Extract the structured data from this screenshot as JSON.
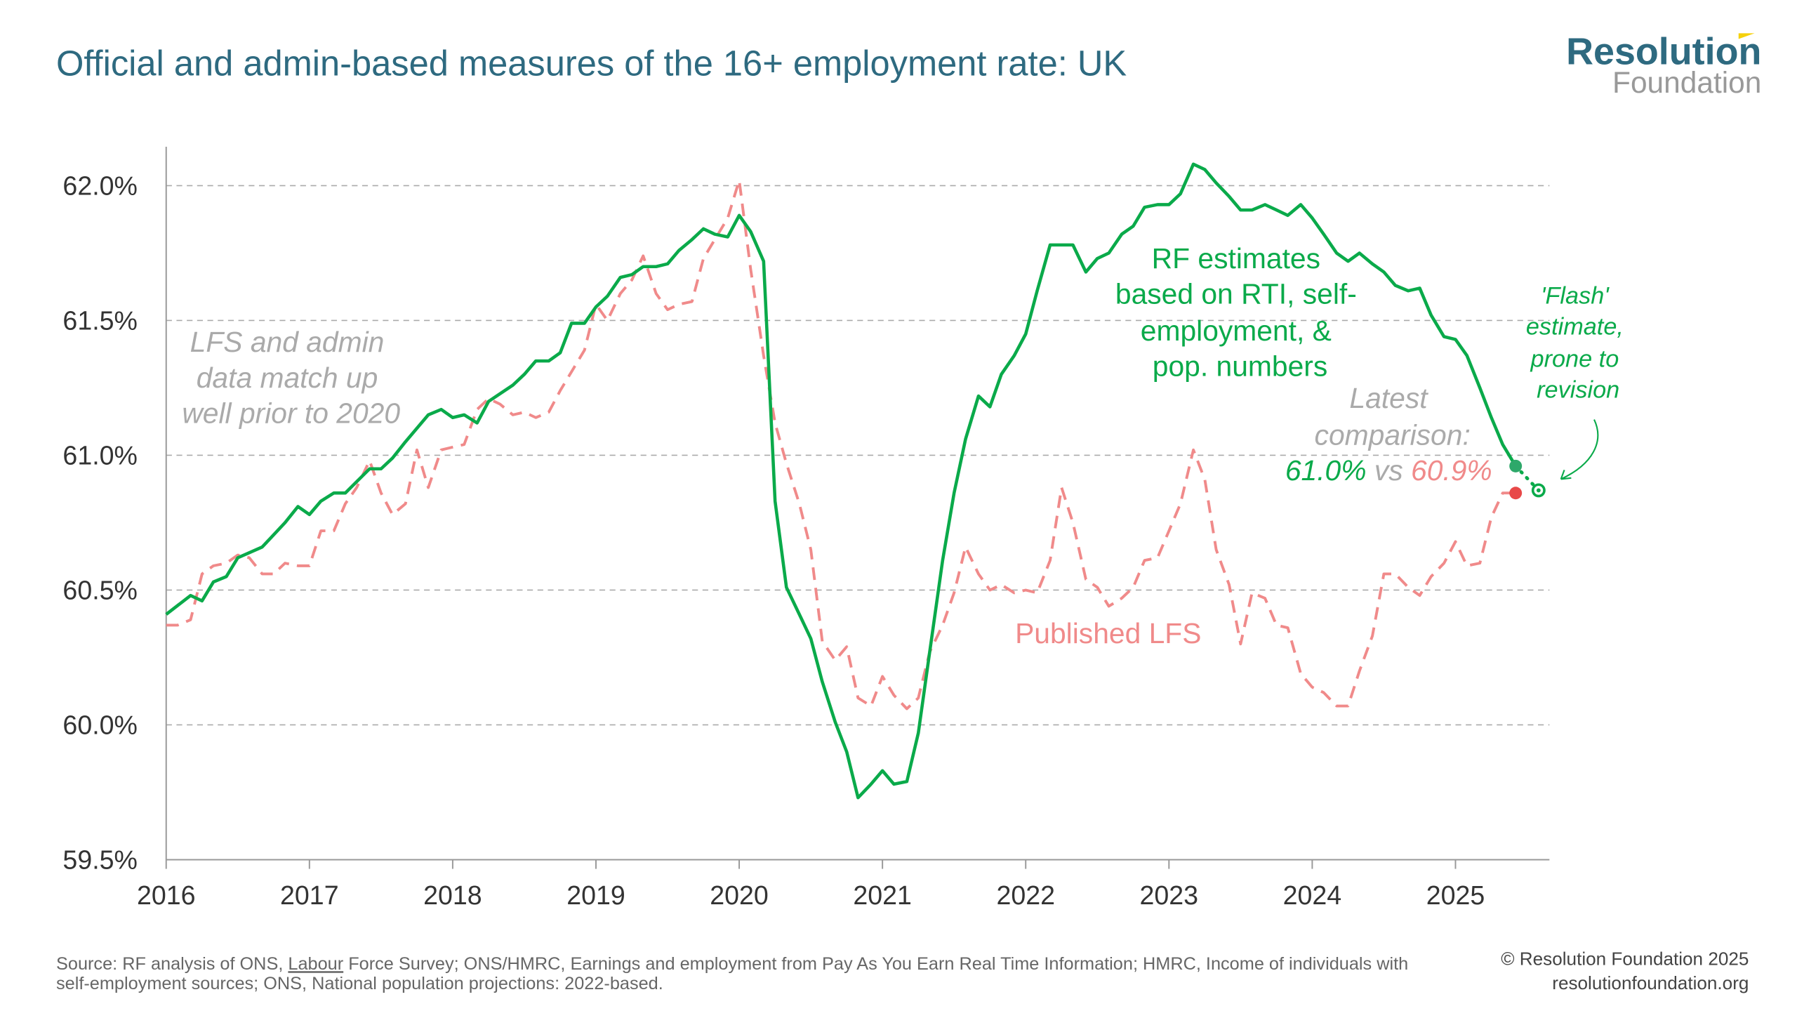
{
  "title": "Official and admin-based measures of the 16+ employment rate: UK",
  "logo": {
    "line1": "Resolution",
    "line2": "Foundation",
    "accent_color": "#f5d10c",
    "color1": "#2e6a80",
    "color2": "#999999"
  },
  "footer": {
    "source_line1_prefix": "Source: RF analysis of ONS, ",
    "source_link": "Labour",
    "source_line1_suffix": " Force Survey; ONS/HMRC, Earnings and employment from Pay As You Earn Real Time Information; HMRC, Income of individuals with",
    "source_line2": "self-employment sources; ONS, National population projections: 2022-based.",
    "copyright": "© Resolution Foundation 2025",
    "website": "resolutionfoundation.org"
  },
  "chart_data": {
    "type": "line",
    "title": "Official and admin-based measures of the 16+ employment rate: UK",
    "xlabel": "",
    "ylabel": "",
    "xlim": [
      2016,
      2025.66
    ],
    "ylim": [
      59.5,
      62.0
    ],
    "xticks": [
      2016,
      2017,
      2018,
      2019,
      2020,
      2021,
      2022,
      2023,
      2024,
      2025
    ],
    "xtick_labels": [
      "2016",
      "2017",
      "2018",
      "2019",
      "2020",
      "2021",
      "2022",
      "2023",
      "2024",
      "2025"
    ],
    "yticks": [
      59.5,
      60.0,
      60.5,
      61.0,
      61.5,
      62.0
    ],
    "ytick_labels": [
      "59.5%",
      "60.0%",
      "60.5%",
      "61.0%",
      "61.5%",
      "62.0%"
    ],
    "grid": "horizontal dashed",
    "series": [
      {
        "name": "RF estimates based on RTI, self-employment, & pop. numbers",
        "color": "#0aaa4a",
        "style": "solid",
        "points": [
          [
            2016.0,
            60.41
          ],
          [
            2016.17,
            60.48
          ],
          [
            2016.25,
            60.46
          ],
          [
            2016.33,
            60.53
          ],
          [
            2016.42,
            60.55
          ],
          [
            2016.5,
            60.62
          ],
          [
            2016.67,
            60.66
          ],
          [
            2016.83,
            60.75
          ],
          [
            2016.92,
            60.81
          ],
          [
            2017.0,
            60.78
          ],
          [
            2017.08,
            60.83
          ],
          [
            2017.17,
            60.86
          ],
          [
            2017.25,
            60.86
          ],
          [
            2017.42,
            60.95
          ],
          [
            2017.5,
            60.95
          ],
          [
            2017.58,
            60.99
          ],
          [
            2017.67,
            61.05
          ],
          [
            2017.83,
            61.15
          ],
          [
            2017.92,
            61.17
          ],
          [
            2018.0,
            61.14
          ],
          [
            2018.08,
            61.15
          ],
          [
            2018.17,
            61.12
          ],
          [
            2018.25,
            61.2
          ],
          [
            2018.42,
            61.26
          ],
          [
            2018.5,
            61.3
          ],
          [
            2018.58,
            61.35
          ],
          [
            2018.67,
            61.35
          ],
          [
            2018.75,
            61.38
          ],
          [
            2018.83,
            61.49
          ],
          [
            2018.92,
            61.49
          ],
          [
            2019.0,
            61.55
          ],
          [
            2019.08,
            61.59
          ],
          [
            2019.17,
            61.66
          ],
          [
            2019.25,
            61.67
          ],
          [
            2019.33,
            61.7
          ],
          [
            2019.42,
            61.7
          ],
          [
            2019.5,
            61.71
          ],
          [
            2019.58,
            61.76
          ],
          [
            2019.67,
            61.8
          ],
          [
            2019.75,
            61.84
          ],
          [
            2019.83,
            61.82
          ],
          [
            2019.92,
            61.81
          ],
          [
            2020.0,
            61.89
          ],
          [
            2020.08,
            61.83
          ],
          [
            2020.17,
            61.72
          ],
          [
            2020.25,
            60.83
          ],
          [
            2020.33,
            60.51
          ],
          [
            2020.42,
            60.41
          ],
          [
            2020.5,
            60.32
          ],
          [
            2020.58,
            60.16
          ],
          [
            2020.67,
            60.01
          ],
          [
            2020.75,
            59.9
          ],
          [
            2020.83,
            59.73
          ],
          [
            2020.92,
            59.78
          ],
          [
            2021.0,
            59.83
          ],
          [
            2021.08,
            59.78
          ],
          [
            2021.17,
            59.79
          ],
          [
            2021.25,
            59.97
          ],
          [
            2021.33,
            60.27
          ],
          [
            2021.42,
            60.61
          ],
          [
            2021.5,
            60.86
          ],
          [
            2021.58,
            61.06
          ],
          [
            2021.67,
            61.22
          ],
          [
            2021.75,
            61.18
          ],
          [
            2021.83,
            61.3
          ],
          [
            2021.92,
            61.37
          ],
          [
            2022.0,
            61.45
          ],
          [
            2022.08,
            61.61
          ],
          [
            2022.17,
            61.78
          ],
          [
            2022.25,
            61.78
          ],
          [
            2022.33,
            61.78
          ],
          [
            2022.42,
            61.68
          ],
          [
            2022.5,
            61.73
          ],
          [
            2022.58,
            61.75
          ],
          [
            2022.67,
            61.82
          ],
          [
            2022.75,
            61.85
          ],
          [
            2022.83,
            61.92
          ],
          [
            2022.92,
            61.93
          ],
          [
            2023.0,
            61.93
          ],
          [
            2023.08,
            61.97
          ],
          [
            2023.17,
            62.08
          ],
          [
            2023.25,
            62.06
          ],
          [
            2023.33,
            62.01
          ],
          [
            2023.42,
            61.96
          ],
          [
            2023.5,
            61.91
          ],
          [
            2023.58,
            61.91
          ],
          [
            2023.67,
            61.93
          ],
          [
            2023.75,
            61.91
          ],
          [
            2023.83,
            61.89
          ],
          [
            2023.92,
            61.93
          ],
          [
            2024.0,
            61.88
          ],
          [
            2024.08,
            61.82
          ],
          [
            2024.17,
            61.75
          ],
          [
            2024.25,
            61.72
          ],
          [
            2024.33,
            61.75
          ],
          [
            2024.42,
            61.71
          ],
          [
            2024.5,
            61.68
          ],
          [
            2024.58,
            61.63
          ],
          [
            2024.67,
            61.61
          ],
          [
            2024.75,
            61.62
          ],
          [
            2024.83,
            61.52
          ],
          [
            2024.92,
            61.44
          ],
          [
            2025.0,
            61.43
          ],
          [
            2025.08,
            61.37
          ],
          [
            2025.17,
            61.25
          ],
          [
            2025.25,
            61.14
          ],
          [
            2025.33,
            61.04
          ],
          [
            2025.42,
            60.96
          ]
        ],
        "latest": [
          2025.42,
          60.96
        ],
        "flash": [
          2025.58,
          60.87
        ]
      },
      {
        "name": "Published LFS",
        "color": "#f08a8a",
        "style": "dashed",
        "points": [
          [
            2016.0,
            60.37
          ],
          [
            2016.08,
            60.37
          ],
          [
            2016.17,
            60.39
          ],
          [
            2016.25,
            60.56
          ],
          [
            2016.33,
            60.59
          ],
          [
            2016.42,
            60.6
          ],
          [
            2016.5,
            60.63
          ],
          [
            2016.58,
            60.62
          ],
          [
            2016.67,
            60.56
          ],
          [
            2016.75,
            60.56
          ],
          [
            2016.83,
            60.6
          ],
          [
            2016.92,
            60.59
          ],
          [
            2017.0,
            60.59
          ],
          [
            2017.08,
            60.72
          ],
          [
            2017.17,
            60.72
          ],
          [
            2017.25,
            60.82
          ],
          [
            2017.33,
            60.88
          ],
          [
            2017.42,
            60.98
          ],
          [
            2017.5,
            60.86
          ],
          [
            2017.58,
            60.78
          ],
          [
            2017.67,
            60.82
          ],
          [
            2017.75,
            61.02
          ],
          [
            2017.83,
            60.88
          ],
          [
            2017.92,
            61.02
          ],
          [
            2018.0,
            61.03
          ],
          [
            2018.08,
            61.04
          ],
          [
            2018.17,
            61.17
          ],
          [
            2018.25,
            61.21
          ],
          [
            2018.33,
            61.19
          ],
          [
            2018.42,
            61.15
          ],
          [
            2018.5,
            61.16
          ],
          [
            2018.58,
            61.14
          ],
          [
            2018.67,
            61.16
          ],
          [
            2018.75,
            61.24
          ],
          [
            2018.83,
            61.31
          ],
          [
            2018.92,
            61.39
          ],
          [
            2019.0,
            61.56
          ],
          [
            2019.08,
            61.5
          ],
          [
            2019.17,
            61.6
          ],
          [
            2019.25,
            61.65
          ],
          [
            2019.33,
            61.74
          ],
          [
            2019.42,
            61.6
          ],
          [
            2019.5,
            61.54
          ],
          [
            2019.58,
            61.56
          ],
          [
            2019.67,
            61.57
          ],
          [
            2019.75,
            61.73
          ],
          [
            2019.83,
            61.8
          ],
          [
            2019.92,
            61.88
          ],
          [
            2020.0,
            62.02
          ],
          [
            2020.08,
            61.69
          ],
          [
            2020.17,
            61.37
          ],
          [
            2020.25,
            61.12
          ],
          [
            2020.33,
            60.97
          ],
          [
            2020.42,
            60.82
          ],
          [
            2020.5,
            60.65
          ],
          [
            2020.58,
            60.31
          ],
          [
            2020.67,
            60.24
          ],
          [
            2020.75,
            60.29
          ],
          [
            2020.83,
            60.1
          ],
          [
            2020.92,
            60.07
          ],
          [
            2021.0,
            60.18
          ],
          [
            2021.08,
            60.11
          ],
          [
            2021.17,
            60.06
          ],
          [
            2021.25,
            60.1
          ],
          [
            2021.33,
            60.27
          ],
          [
            2021.42,
            60.37
          ],
          [
            2021.5,
            60.49
          ],
          [
            2021.58,
            60.66
          ],
          [
            2021.67,
            60.56
          ],
          [
            2021.75,
            60.5
          ],
          [
            2021.83,
            60.52
          ],
          [
            2021.92,
            60.49
          ],
          [
            2022.0,
            60.5
          ],
          [
            2022.08,
            60.49
          ],
          [
            2022.17,
            60.61
          ],
          [
            2022.25,
            60.88
          ],
          [
            2022.33,
            60.75
          ],
          [
            2022.42,
            60.54
          ],
          [
            2022.5,
            60.51
          ],
          [
            2022.58,
            60.44
          ],
          [
            2022.67,
            60.47
          ],
          [
            2022.75,
            60.51
          ],
          [
            2022.83,
            60.61
          ],
          [
            2022.92,
            60.62
          ],
          [
            2023.0,
            60.72
          ],
          [
            2023.08,
            60.82
          ],
          [
            2023.17,
            61.02
          ],
          [
            2023.25,
            60.91
          ],
          [
            2023.33,
            60.65
          ],
          [
            2023.42,
            60.52
          ],
          [
            2023.5,
            60.3
          ],
          [
            2023.58,
            60.49
          ],
          [
            2023.67,
            60.47
          ],
          [
            2023.75,
            60.37
          ],
          [
            2023.83,
            60.36
          ],
          [
            2023.92,
            60.19
          ],
          [
            2024.0,
            60.14
          ],
          [
            2024.08,
            60.12
          ],
          [
            2024.17,
            60.07
          ],
          [
            2024.25,
            60.07
          ],
          [
            2024.33,
            60.2
          ],
          [
            2024.42,
            60.33
          ],
          [
            2024.5,
            60.56
          ],
          [
            2024.58,
            60.56
          ],
          [
            2024.67,
            60.51
          ],
          [
            2024.75,
            60.48
          ],
          [
            2024.83,
            60.55
          ],
          [
            2024.92,
            60.6
          ],
          [
            2025.0,
            60.68
          ],
          [
            2025.08,
            60.59
          ],
          [
            2025.17,
            60.6
          ],
          [
            2025.25,
            60.77
          ],
          [
            2025.33,
            60.86
          ],
          [
            2025.42,
            60.86
          ]
        ],
        "latest": [
          2025.42,
          60.86
        ]
      }
    ],
    "annotations": {
      "lfs_admin": [
        "LFS and admin",
        "data match up",
        "well prior to 2020"
      ],
      "rf_label": [
        "RF estimates",
        "based on RTI, self-",
        "employment, &",
        "pop. numbers"
      ],
      "lfs_label": "Published LFS",
      "latest": [
        "Latest",
        "comparison:"
      ],
      "latest_rf": "61.0%",
      "latest_vs": "vs",
      "latest_lfs": "60.9%",
      "flash": [
        "'Flash'",
        "estimate,",
        "prone to",
        "revision"
      ]
    }
  }
}
